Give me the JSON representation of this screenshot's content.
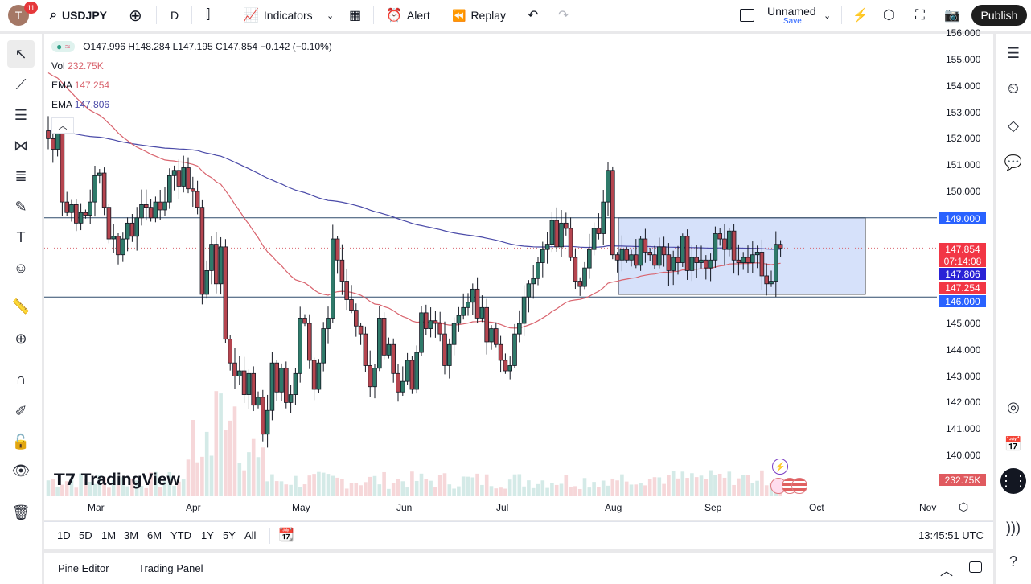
{
  "header": {
    "avatar_letter": "T",
    "notifications": "11",
    "symbol": "USDJPY",
    "interval": "D",
    "indicators_label": "Indicators",
    "alert_label": "Alert",
    "replay_label": "Replay",
    "layout_name": "Unnamed",
    "save_label": "Save",
    "publish_label": "Publish"
  },
  "legend": {
    "ohlc": "O147.996 H148.284 L147.195 C147.854 −0.142 (−0.10%)",
    "vol_label": "Vol",
    "vol_value": "232.75K",
    "ema1_label": "EMA",
    "ema1_value": "147.254",
    "ema2_label": "EMA",
    "ema2_value": "147.806"
  },
  "price_axis": {
    "labels": [
      "156.000",
      "155.000",
      "154.000",
      "153.000",
      "152.000",
      "151.000",
      "150.000",
      "145.000",
      "144.000",
      "143.000",
      "142.000",
      "141.000",
      "140.000"
    ],
    "tag_149": "149.000",
    "tag_last_price": "147.854",
    "tag_countdown": "07:14:08",
    "tag_ema2": "147.806",
    "tag_ema1": "147.254",
    "tag_146": "146.000",
    "tag_volume": "232.75K"
  },
  "time_axis": {
    "labels": [
      "Mar",
      "Apr",
      "May",
      "Jun",
      "Jul",
      "Aug",
      "Sep",
      "Oct",
      "Nov"
    ]
  },
  "ranges": [
    "1D",
    "5D",
    "1M",
    "3M",
    "6M",
    "YTD",
    "1Y",
    "5Y",
    "All"
  ],
  "clock": "13:45:51 UTC",
  "panel_tabs": [
    "Pine Editor",
    "Trading Panel"
  ],
  "logo_text": "TradingView",
  "colors": {
    "up": "#2f7a6a",
    "down": "#b5454f",
    "ema1": "#d9646e",
    "ema2": "#4a4aa8",
    "levels": "#2e4a6b",
    "box": "#cfdcfa",
    "tag_blue": "#2962ff",
    "tag_red": "#f23645"
  },
  "drawings": {
    "horizontal_levels": [
      149.0,
      146.0
    ],
    "rectangle": {
      "top": 149.0,
      "bottom": 146.1
    }
  },
  "chart_data": {
    "type": "candlestick",
    "symbol": "USDJPY",
    "last_open": 147.996,
    "closes": [
      152.0,
      151.6,
      152.2,
      149.6,
      149.2,
      149.5,
      148.8,
      149.2,
      149.1,
      149.6,
      150.6,
      150.7,
      149.4,
      148.2,
      148.3,
      147.6,
      148.2,
      148.8,
      148.3,
      149.0,
      149.5,
      149.4,
      149.0,
      149.6,
      149.3,
      149.6,
      150.6,
      150.8,
      150.2,
      150.9,
      150.1,
      150.0,
      149.4,
      146.1,
      147.0,
      148.0,
      146.5,
      147.9,
      144.4,
      143.5,
      143.0,
      143.2,
      142.3,
      143.1,
      141.9,
      142.2,
      140.8,
      141.7,
      143.5,
      142.4,
      143.3,
      142.0,
      142.3,
      143.1,
      145.2,
      145.0,
      143.6,
      142.5,
      143.5,
      144.8,
      145.2,
      148.2,
      147.4,
      146.6,
      145.9,
      145.5,
      144.9,
      144.6,
      143.4,
      142.6,
      143.3,
      145.2,
      143.8,
      144.2,
      143.1,
      142.4,
      142.8,
      143.6,
      142.5,
      143.9,
      145.4,
      144.8,
      145.1,
      145.0,
      144.6,
      143.4,
      144.2,
      145.0,
      145.3,
      145.6,
      145.8,
      146.3,
      145.2,
      145.6,
      144.3,
      144.8,
      144.2,
      143.6,
      143.2,
      143.4,
      144.6,
      145.0,
      146.0,
      146.5,
      146.7,
      147.3,
      147.8,
      148.0,
      148.9,
      147.9,
      148.8,
      148.6,
      147.5,
      146.6,
      146.4,
      147.1,
      147.8,
      148.6,
      148.4,
      149.6,
      150.8,
      147.6,
      147.4,
      147.8,
      147.4,
      147.6,
      147.2,
      148.2,
      147.7,
      147.6,
      147.2,
      147.9,
      147.6,
      147.0,
      147.5,
      147.3,
      148.3,
      147.0,
      147.5,
      147.3,
      147.4,
      147.1,
      147.4,
      148.4,
      148.2,
      147.8,
      148.5,
      147.4,
      147.3,
      147.5,
      147.3,
      147.6,
      147.7,
      146.8,
      146.5,
      146.6,
      147.996,
      147.854
    ],
    "ylim": [
      139.5,
      156.1
    ]
  }
}
